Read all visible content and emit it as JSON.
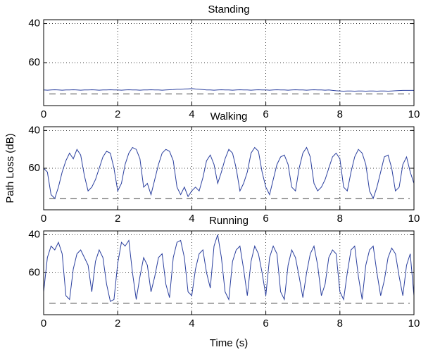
{
  "chart_data": [
    {
      "type": "line",
      "title": "Standing",
      "color": "#2a3f9e",
      "y_inverted": true,
      "grid": true,
      "xlim": [
        0,
        10
      ],
      "xticks": [
        0,
        2,
        4,
        6,
        8,
        10
      ],
      "ylim": [
        38,
        82
      ],
      "yticks": [
        40,
        60
      ],
      "reference_line": 76,
      "reference_color": "#444444",
      "x": [
        0,
        0.1,
        0.2,
        0.3,
        0.4,
        0.5,
        0.6,
        0.7,
        0.8,
        0.9,
        1,
        1.1,
        1.2,
        1.3,
        1.4,
        1.5,
        1.6,
        1.7,
        1.8,
        1.9,
        2,
        2.1,
        2.2,
        2.3,
        2.4,
        2.5,
        2.6,
        2.7,
        2.8,
        2.9,
        3,
        3.1,
        3.2,
        3.3,
        3.4,
        3.5,
        3.6,
        3.7,
        3.8,
        3.9,
        4,
        4.1,
        4.2,
        4.3,
        4.4,
        4.5,
        4.6,
        4.7,
        4.8,
        4.9,
        5,
        5.1,
        5.2,
        5.3,
        5.4,
        5.5,
        5.6,
        5.7,
        5.8,
        5.9,
        6,
        6.1,
        6.2,
        6.3,
        6.4,
        6.5,
        6.6,
        6.7,
        6.8,
        6.9,
        7,
        7.1,
        7.2,
        7.3,
        7.4,
        7.5,
        7.6,
        7.7,
        7.8,
        7.9,
        8,
        8.1,
        8.2,
        8.3,
        8.4,
        8.5,
        8.6,
        8.7,
        8.8,
        8.9,
        9,
        9.1,
        9.2,
        9.3,
        9.4,
        9.5,
        9.6,
        9.7,
        9.8,
        9.9,
        10
      ],
      "values": [
        74,
        74.1,
        74,
        73.9,
        74,
        74.1,
        74,
        74,
        73.9,
        74,
        74.1,
        74,
        74,
        73.9,
        74,
        74.1,
        74,
        74,
        73.9,
        74,
        74,
        74.1,
        74,
        73.9,
        74,
        74,
        74.1,
        74,
        74,
        73.9,
        74,
        74,
        74.1,
        74,
        73.9,
        73.8,
        73.6,
        73.6,
        73.5,
        73.4,
        73.3,
        73.5,
        73.6,
        73.8,
        74,
        74,
        74.1,
        74,
        73.9,
        74,
        74,
        74.1,
        74,
        73.9,
        74,
        74,
        74.1,
        74,
        73.9,
        74,
        74,
        74.1,
        74,
        73.9,
        74,
        74,
        74.1,
        74,
        73.9,
        74,
        74,
        74.1,
        74,
        73.9,
        74,
        74,
        74.1,
        74,
        74.2,
        74.4,
        74.5,
        74.6,
        74.5,
        74.5,
        74.6,
        74.5,
        74.5,
        74.6,
        74.5,
        74.5,
        74.6,
        74.5,
        74.5,
        74.6,
        74.5,
        74.4,
        74.3,
        74.2,
        74.2,
        74.2,
        74.2
      ]
    },
    {
      "type": "line",
      "title": "Walking",
      "ylabel": "Path Loss (dB)",
      "color": "#2a3f9e",
      "y_inverted": true,
      "grid": true,
      "xlim": [
        0,
        10
      ],
      "xticks": [
        0,
        2,
        4,
        6,
        8,
        10
      ],
      "ylim": [
        38,
        82
      ],
      "yticks": [
        40,
        60
      ],
      "reference_line": 76,
      "reference_color": "#444444",
      "x": [
        0,
        0.1,
        0.2,
        0.3,
        0.4,
        0.5,
        0.6,
        0.7,
        0.8,
        0.9,
        1,
        1.1,
        1.2,
        1.3,
        1.4,
        1.5,
        1.6,
        1.7,
        1.8,
        1.9,
        2,
        2.1,
        2.2,
        2.3,
        2.4,
        2.5,
        2.6,
        2.7,
        2.8,
        2.9,
        3,
        3.1,
        3.2,
        3.3,
        3.4,
        3.5,
        3.6,
        3.7,
        3.8,
        3.9,
        4,
        4.1,
        4.2,
        4.3,
        4.4,
        4.5,
        4.6,
        4.7,
        4.8,
        4.9,
        5,
        5.1,
        5.2,
        5.3,
        5.4,
        5.5,
        5.6,
        5.7,
        5.8,
        5.9,
        6,
        6.1,
        6.2,
        6.3,
        6.4,
        6.5,
        6.6,
        6.7,
        6.8,
        6.9,
        7,
        7.1,
        7.2,
        7.3,
        7.4,
        7.5,
        7.6,
        7.7,
        7.8,
        7.9,
        8,
        8.1,
        8.2,
        8.3,
        8.4,
        8.5,
        8.6,
        8.7,
        8.8,
        8.9,
        9,
        9.1,
        9.2,
        9.3,
        9.4,
        9.5,
        9.6,
        9.7,
        9.8,
        9.9,
        10
      ],
      "values": [
        60,
        62,
        74,
        76,
        70,
        62,
        56,
        52,
        55,
        50,
        53,
        64,
        72,
        70,
        66,
        60,
        54,
        51,
        52,
        60,
        72,
        68,
        58,
        52,
        49,
        50,
        55,
        70,
        68,
        74,
        66,
        58,
        52,
        50,
        51,
        56,
        70,
        74,
        70,
        75,
        72,
        70,
        72,
        65,
        56,
        53,
        58,
        68,
        62,
        55,
        50,
        52,
        60,
        72,
        68,
        62,
        52,
        49,
        51,
        62,
        70,
        74,
        66,
        58,
        54,
        53,
        58,
        70,
        72,
        60,
        52,
        49,
        54,
        68,
        72,
        70,
        66,
        60,
        54,
        52,
        55,
        70,
        72,
        62,
        54,
        50,
        52,
        58,
        72,
        76,
        70,
        62,
        54,
        53,
        60,
        72,
        70,
        58,
        54,
        62,
        68
      ]
    },
    {
      "type": "line",
      "title": "Running",
      "xlabel": "Time (s)",
      "color": "#2a3f9e",
      "y_inverted": true,
      "grid": true,
      "xlim": [
        0,
        10
      ],
      "xticks": [
        0,
        2,
        4,
        6,
        8,
        10
      ],
      "ylim": [
        38,
        82
      ],
      "yticks": [
        40,
        60
      ],
      "reference_line": 76,
      "reference_color": "#444444",
      "x": [
        0,
        0.1,
        0.2,
        0.3,
        0.4,
        0.5,
        0.6,
        0.7,
        0.8,
        0.9,
        1,
        1.1,
        1.2,
        1.3,
        1.4,
        1.5,
        1.6,
        1.7,
        1.8,
        1.9,
        2,
        2.1,
        2.2,
        2.3,
        2.4,
        2.5,
        2.6,
        2.7,
        2.8,
        2.9,
        3,
        3.1,
        3.2,
        3.3,
        3.4,
        3.5,
        3.6,
        3.7,
        3.8,
        3.9,
        4,
        4.1,
        4.2,
        4.3,
        4.4,
        4.5,
        4.6,
        4.7,
        4.8,
        4.9,
        5,
        5.1,
        5.2,
        5.3,
        5.4,
        5.5,
        5.6,
        5.7,
        5.8,
        5.9,
        6,
        6.1,
        6.2,
        6.3,
        6.4,
        6.5,
        6.6,
        6.7,
        6.8,
        6.9,
        7,
        7.1,
        7.2,
        7.3,
        7.4,
        7.5,
        7.6,
        7.7,
        7.8,
        7.9,
        8,
        8.1,
        8.2,
        8.3,
        8.4,
        8.5,
        8.6,
        8.7,
        8.8,
        8.9,
        9,
        9.1,
        9.2,
        9.3,
        9.4,
        9.5,
        9.6,
        9.7,
        9.8,
        9.9,
        10
      ],
      "values": [
        70,
        52,
        46,
        48,
        44,
        50,
        72,
        74,
        58,
        50,
        48,
        52,
        56,
        70,
        54,
        48,
        52,
        66,
        75,
        74,
        55,
        44,
        46,
        43,
        60,
        74,
        62,
        52,
        56,
        70,
        62,
        52,
        50,
        66,
        73,
        52,
        44,
        43,
        52,
        70,
        72,
        58,
        50,
        48,
        60,
        68,
        46,
        40,
        52,
        70,
        74,
        54,
        48,
        46,
        58,
        72,
        54,
        46,
        50,
        60,
        72,
        52,
        46,
        50,
        70,
        74,
        56,
        48,
        52,
        62,
        73,
        60,
        50,
        46,
        56,
        72,
        66,
        52,
        48,
        50,
        70,
        74,
        60,
        48,
        46,
        62,
        74,
        56,
        48,
        46,
        60,
        72,
        64,
        52,
        47,
        50,
        62,
        72,
        56,
        50,
        72
      ]
    }
  ]
}
